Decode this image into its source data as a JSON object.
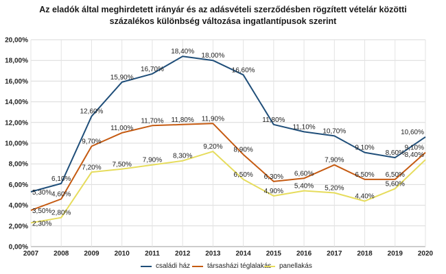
{
  "chart_data": {
    "type": "line",
    "title_line1": "Az eladók által meghirdetett irányár és az adásvételi szerződésben rögzített vételár közötti",
    "title_line2": "százalékos különbség változása ingatlantípusok szerint",
    "xlabel": "",
    "ylabel": "",
    "ylim": [
      0,
      20
    ],
    "grid": true,
    "legend_position": "bottom",
    "x": [
      "2007",
      "2008",
      "2009",
      "2010",
      "2011",
      "2012",
      "2013",
      "2014",
      "2015",
      "2016",
      "2017",
      "2018",
      "2019",
      "2020"
    ],
    "y_ticks": [
      "0,00%",
      "2,00%",
      "4,00%",
      "6,00%",
      "8,00%",
      "10,00%",
      "12,00%",
      "14,00%",
      "16,00%",
      "18,00%",
      "20,00%"
    ],
    "series": [
      {
        "name": "családi ház",
        "color": "#1f4e79",
        "values": [
          5.3,
          6.1,
          12.6,
          15.9,
          16.7,
          18.4,
          18.0,
          16.6,
          11.8,
          11.1,
          10.7,
          9.1,
          8.6,
          10.6
        ],
        "labels": [
          "5,30%",
          "6,10%",
          "12,60%",
          "15,90%",
          "16,70%",
          "18,40%",
          "18,00%",
          "16,60%",
          "11,80%",
          "11,10%",
          "10,70%",
          "9,10%",
          "8,60%",
          "10,60%"
        ]
      },
      {
        "name": "társasházi téglalakás",
        "color": "#c55a11",
        "values": [
          3.5,
          4.6,
          9.7,
          11.0,
          11.7,
          11.8,
          11.9,
          8.9,
          6.3,
          6.6,
          7.9,
          6.5,
          6.5,
          9.1
        ],
        "labels": [
          "3,50%",
          "4,60%",
          "9,70%",
          "11,00%",
          "11,70%",
          "11,80%",
          "11,90%",
          "8,90%",
          "6,30%",
          "6,60%",
          "7,90%",
          "6,50%",
          "6,50%",
          "9,10%"
        ]
      },
      {
        "name": "panellakás",
        "color": "#e6dc5c",
        "values": [
          2.3,
          2.8,
          7.2,
          7.5,
          7.9,
          8.3,
          9.2,
          6.5,
          4.9,
          5.4,
          5.2,
          4.4,
          5.6,
          8.4
        ],
        "labels": [
          "2,30%",
          "2,80%",
          "7,20%",
          "7,50%",
          "7,90%",
          "8,30%",
          "9,20%",
          "6,50%",
          "4,90%",
          "5,40%",
          "5,20%",
          "4,40%",
          "5,60%",
          "8,40%"
        ]
      }
    ]
  }
}
